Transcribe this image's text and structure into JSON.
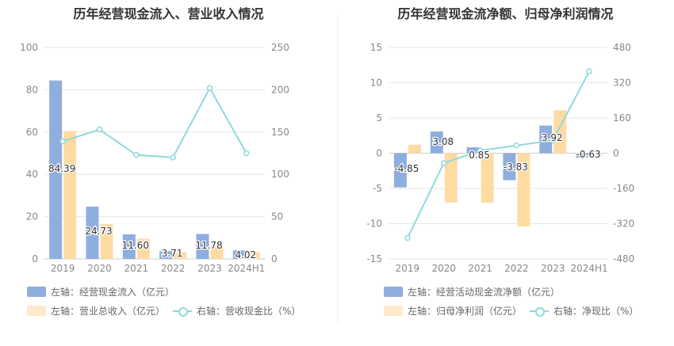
{
  "colors": {
    "bar_primary": "#8eaedd",
    "bar_secondary": "#ffdba4",
    "line": "#8fd9dc",
    "grid": "#e6e6e6",
    "axis_text": "#888888",
    "title": "#333333"
  },
  "chart_data": [
    {
      "type": "bar",
      "title": "历年经营现金流入、营业收入情况",
      "categories": [
        "2019",
        "2020",
        "2021",
        "2022",
        "2023",
        "2024H1"
      ],
      "left_axis": {
        "min": 0,
        "max": 100,
        "ticks": [
          "0",
          "20",
          "40",
          "60",
          "80",
          "100"
        ]
      },
      "right_axis": {
        "min": 0,
        "max": 250,
        "ticks": [
          "0",
          "50",
          "100",
          "150",
          "200",
          "250"
        ]
      },
      "series": [
        {
          "name": "左轴：经营现金流入（亿元）",
          "axis": "left",
          "kind": "bar",
          "values": [
            84.39,
            24.73,
            11.6,
            3.71,
            11.78,
            4.02
          ],
          "labels": [
            "84.39",
            "24.73",
            "11.60",
            "3.71",
            "11.78",
            "4.02"
          ]
        },
        {
          "name": "左轴：营业总收入（亿元）",
          "axis": "left",
          "kind": "bar",
          "values": [
            60.5,
            16.5,
            9.5,
            3.2,
            6.0,
            3.3
          ]
        },
        {
          "name": "右轴：营收现金比（%）",
          "axis": "right",
          "kind": "line",
          "values": [
            139,
            153,
            123,
            120,
            202,
            125
          ]
        }
      ],
      "grid": true,
      "legend_position": "bottom-left"
    },
    {
      "type": "bar",
      "title": "历年经营现金流净额、归母净利润情况",
      "categories": [
        "2019",
        "2020",
        "2021",
        "2022",
        "2023",
        "2024H1"
      ],
      "left_axis": {
        "min": -15,
        "max": 15,
        "ticks": [
          "-15",
          "-10",
          "-5",
          "0",
          "5",
          "10",
          "15"
        ]
      },
      "right_axis": {
        "min": -480,
        "max": 480,
        "ticks": [
          "-480",
          "-320",
          "-160",
          "0",
          "160",
          "320",
          "480"
        ]
      },
      "series": [
        {
          "name": "左轴：经营活动现金流净额（亿元）",
          "axis": "left",
          "kind": "bar",
          "values": [
            -4.85,
            3.08,
            0.85,
            -3.83,
            3.92,
            -0.63
          ],
          "labels": [
            "-4.85",
            "3.08",
            "0.85",
            "-3.83",
            "3.92",
            "-0.63"
          ]
        },
        {
          "name": "左轴：归母净利润（亿元）",
          "axis": "left",
          "kind": "bar",
          "values": [
            1.2,
            -7.0,
            -7.0,
            -10.4,
            6.1,
            -0.2
          ]
        },
        {
          "name": "右轴：净现比（%）",
          "axis": "right",
          "kind": "line",
          "values": [
            -385,
            -45,
            12,
            35,
            58,
            372
          ]
        }
      ],
      "grid": true,
      "legend_position": "bottom-left"
    }
  ]
}
